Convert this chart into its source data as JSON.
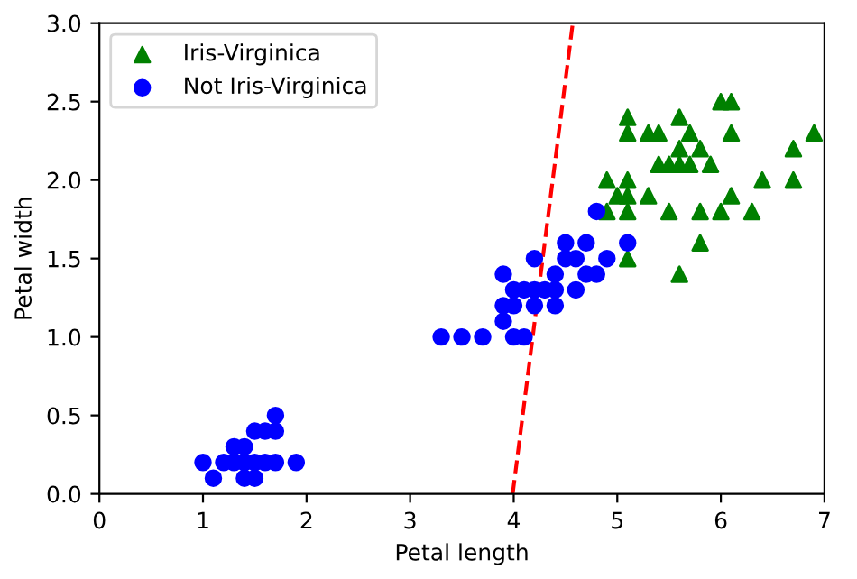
{
  "chart_data": {
    "type": "scatter",
    "xlabel": "Petal length",
    "ylabel": "Petal width",
    "xlim": [
      0,
      7
    ],
    "ylim": [
      0,
      3
    ],
    "xticks": [
      0,
      1,
      2,
      3,
      4,
      5,
      6,
      7
    ],
    "yticks": [
      {
        "value": 0,
        "label": "0.0"
      },
      {
        "value": 0.5,
        "label": "0.5"
      },
      {
        "value": 1,
        "label": "1.0"
      },
      {
        "value": 1.5,
        "label": "1.5"
      },
      {
        "value": 2,
        "label": "2.0"
      },
      {
        "value": 2.5,
        "label": "2.5"
      },
      {
        "value": 3,
        "label": "3.0"
      }
    ],
    "grid": false,
    "legend": "top left",
    "series": [
      {
        "name": "Iris-Virginica",
        "marker": "triangle",
        "color": "#008000",
        "x": [
          6.0,
          6.1,
          5.1,
          5.6,
          5.1,
          5.3,
          5.4,
          5.7,
          6.1,
          6.9,
          5.6,
          5.8,
          6.7,
          5.4,
          5.5,
          5.6,
          5.7,
          5.9,
          4.9,
          5.1,
          6.4,
          6.7,
          5.0,
          5.1,
          5.3,
          6.1,
          4.9,
          5.1,
          5.5,
          5.8,
          6.0,
          6.3,
          5.8,
          5.1,
          5.6
        ],
        "values": [
          2.5,
          2.5,
          2.4,
          2.4,
          2.3,
          2.3,
          2.3,
          2.3,
          2.3,
          2.3,
          2.2,
          2.2,
          2.2,
          2.1,
          2.1,
          2.1,
          2.1,
          2.1,
          2.0,
          2.0,
          2.0,
          2.0,
          1.9,
          1.9,
          1.9,
          1.9,
          1.8,
          1.8,
          1.8,
          1.8,
          1.8,
          1.8,
          1.6,
          1.5,
          1.4
        ]
      },
      {
        "name": "Not Iris-Virginica",
        "marker": "circle",
        "color": "#0000ff",
        "x": [
          1.0,
          1.2,
          1.3,
          1.4,
          1.5,
          1.6,
          1.7,
          1.9,
          1.1,
          1.4,
          1.5,
          1.3,
          1.4,
          1.5,
          1.6,
          1.7,
          1.7,
          3.3,
          3.5,
          3.7,
          4.0,
          4.1,
          3.9,
          3.9,
          4.0,
          4.2,
          4.4,
          4.0,
          4.1,
          4.2,
          4.3,
          4.4,
          4.6,
          3.9,
          4.4,
          4.7,
          4.8,
          4.2,
          4.5,
          4.6,
          4.9,
          4.5,
          4.7,
          5.1,
          4.8
        ],
        "values": [
          0.2,
          0.2,
          0.2,
          0.2,
          0.2,
          0.2,
          0.2,
          0.2,
          0.1,
          0.1,
          0.1,
          0.3,
          0.3,
          0.4,
          0.4,
          0.4,
          0.5,
          1.0,
          1.0,
          1.0,
          1.0,
          1.0,
          1.1,
          1.2,
          1.2,
          1.2,
          1.2,
          1.3,
          1.3,
          1.3,
          1.3,
          1.3,
          1.3,
          1.4,
          1.4,
          1.4,
          1.4,
          1.5,
          1.5,
          1.5,
          1.5,
          1.6,
          1.6,
          1.6,
          1.8
        ]
      },
      {
        "type": "line",
        "marker": "none",
        "line_style": "dashed",
        "color": "#ff0000",
        "x": [
          3.99,
          4.57
        ],
        "values": [
          0,
          3
        ]
      }
    ]
  }
}
